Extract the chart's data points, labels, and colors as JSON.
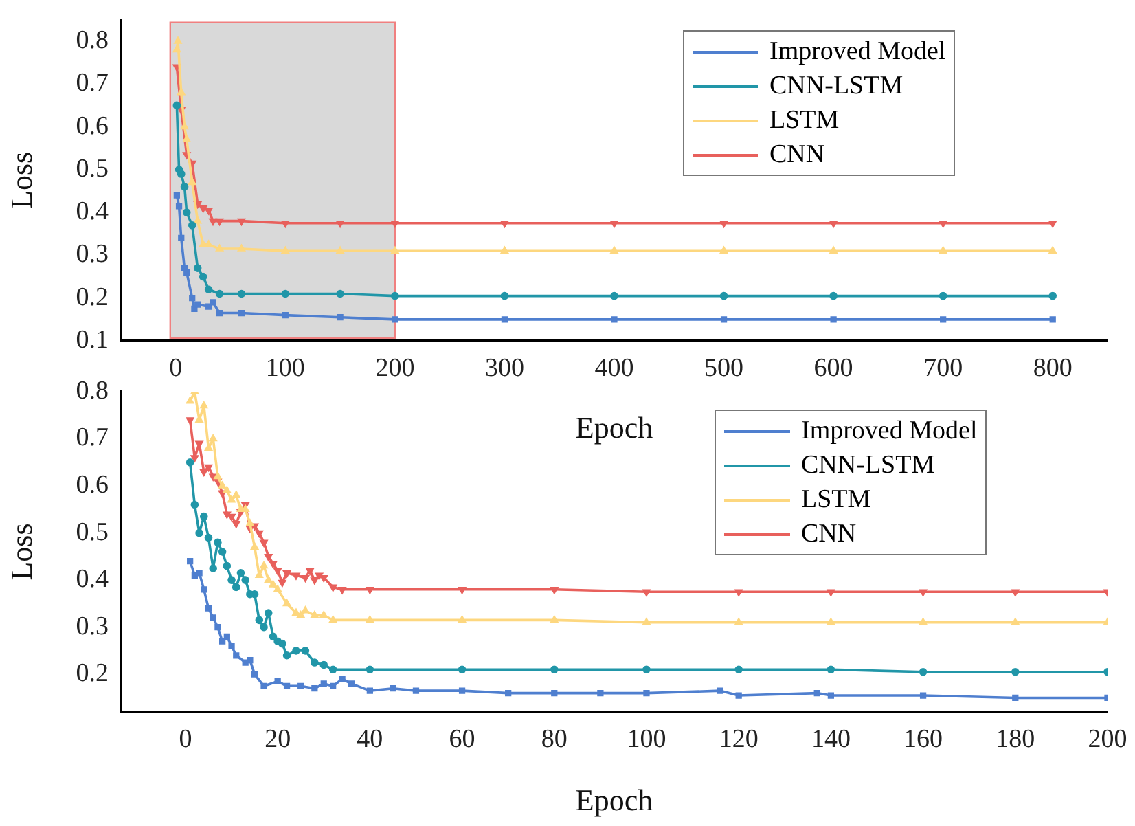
{
  "chart_data": [
    {
      "type": "line",
      "xlabel": "Epoch",
      "ylabel": "Loss",
      "xlim": [
        -50,
        850
      ],
      "xticks": [
        0,
        100,
        200,
        300,
        400,
        500,
        600,
        700,
        800
      ],
      "ylim": [
        0.1,
        0.85
      ],
      "yticks": [
        0.1,
        0.2,
        0.3,
        0.4,
        0.5,
        0.6,
        0.7,
        0.8
      ],
      "legend": "top right",
      "grid": false,
      "bands": [
        {
          "axis": "x",
          "from": -5,
          "to": 200,
          "color": "#d9d9d9"
        }
      ],
      "series": [
        {
          "name": "Improved Model",
          "color": "#4f7fcf",
          "marker": "square",
          "x": [
            1,
            3,
            5,
            8,
            10,
            15,
            17,
            20,
            30,
            34,
            40,
            60,
            100,
            150,
            200,
            300,
            400,
            500,
            600,
            700,
            800
          ],
          "values": [
            0.44,
            0.415,
            0.34,
            0.27,
            0.26,
            0.2,
            0.175,
            0.185,
            0.18,
            0.19,
            0.165,
            0.165,
            0.16,
            0.155,
            0.15,
            0.15,
            0.15,
            0.15,
            0.15,
            0.15,
            0.15
          ]
        },
        {
          "name": "CNN-LSTM",
          "color": "#2196a8",
          "marker": "circle",
          "x": [
            1,
            3,
            5,
            8,
            10,
            15,
            20,
            25,
            30,
            40,
            60,
            100,
            150,
            200,
            300,
            400,
            500,
            600,
            700,
            800
          ],
          "values": [
            0.65,
            0.5,
            0.49,
            0.46,
            0.4,
            0.37,
            0.27,
            0.25,
            0.22,
            0.21,
            0.21,
            0.21,
            0.21,
            0.205,
            0.205,
            0.205,
            0.205,
            0.205,
            0.205,
            0.205
          ]
        },
        {
          "name": "LSTM",
          "color": "#fdd77f",
          "marker": "triangle",
          "x": [
            1,
            2,
            5,
            8,
            10,
            15,
            20,
            25,
            30,
            40,
            60,
            100,
            150,
            200,
            300,
            400,
            500,
            600,
            700,
            800
          ],
          "values": [
            0.78,
            0.8,
            0.68,
            0.6,
            0.57,
            0.47,
            0.38,
            0.325,
            0.325,
            0.315,
            0.315,
            0.31,
            0.31,
            0.31,
            0.31,
            0.31,
            0.31,
            0.31,
            0.31,
            0.31
          ]
        },
        {
          "name": "CNN",
          "color": "#e8605c",
          "marker": "triangle-down",
          "x": [
            1,
            5,
            10,
            15,
            20,
            25,
            30,
            34,
            40,
            60,
            100,
            150,
            200,
            300,
            400,
            500,
            600,
            700,
            800
          ],
          "values": [
            0.74,
            0.64,
            0.535,
            0.515,
            0.42,
            0.41,
            0.405,
            0.38,
            0.38,
            0.38,
            0.375,
            0.375,
            0.375,
            0.375,
            0.375,
            0.375,
            0.375,
            0.375,
            0.375
          ]
        }
      ]
    },
    {
      "type": "line",
      "xlabel": "Epoch",
      "ylabel": "Loss",
      "xlim": [
        -14,
        200
      ],
      "xticks": [
        0,
        20,
        40,
        60,
        80,
        100,
        120,
        140,
        160,
        180,
        200
      ],
      "ylim": [
        0.12,
        0.8
      ],
      "yticks": [
        0.2,
        0.3,
        0.4,
        0.5,
        0.6,
        0.7,
        0.8
      ],
      "legend": "top right",
      "grid": false,
      "series": [
        {
          "name": "Improved Model",
          "color": "#4f7fcf",
          "marker": "square",
          "x": [
            1,
            2,
            3,
            4,
            5,
            6,
            7,
            8,
            9,
            10,
            11,
            13,
            14,
            15,
            17,
            20,
            22,
            25,
            28,
            30,
            32,
            34,
            36,
            40,
            45,
            50,
            60,
            70,
            80,
            90,
            100,
            116,
            120,
            137,
            140,
            160,
            180,
            200
          ],
          "values": [
            0.44,
            0.41,
            0.415,
            0.38,
            0.34,
            0.32,
            0.3,
            0.27,
            0.28,
            0.26,
            0.24,
            0.225,
            0.23,
            0.2,
            0.175,
            0.185,
            0.175,
            0.175,
            0.17,
            0.18,
            0.175,
            0.19,
            0.18,
            0.165,
            0.17,
            0.165,
            0.165,
            0.16,
            0.16,
            0.16,
            0.16,
            0.165,
            0.155,
            0.16,
            0.155,
            0.155,
            0.15,
            0.15
          ]
        },
        {
          "name": "CNN-LSTM",
          "color": "#2196a8",
          "marker": "circle",
          "x": [
            1,
            2,
            3,
            4,
            5,
            6,
            7,
            8,
            9,
            10,
            11,
            12,
            13,
            14,
            15,
            16,
            17,
            18,
            19,
            20,
            21,
            22,
            24,
            26,
            28,
            30,
            32,
            40,
            60,
            80,
            100,
            120,
            140,
            160,
            180,
            200
          ],
          "values": [
            0.65,
            0.56,
            0.5,
            0.535,
            0.49,
            0.425,
            0.48,
            0.46,
            0.43,
            0.4,
            0.385,
            0.415,
            0.4,
            0.37,
            0.37,
            0.315,
            0.3,
            0.33,
            0.28,
            0.27,
            0.265,
            0.24,
            0.25,
            0.25,
            0.225,
            0.22,
            0.21,
            0.21,
            0.21,
            0.21,
            0.21,
            0.21,
            0.21,
            0.205,
            0.205,
            0.205
          ]
        },
        {
          "name": "LSTM",
          "color": "#fdd77f",
          "marker": "triangle",
          "x": [
            1,
            2,
            3,
            4,
            5,
            6,
            7,
            8,
            9,
            10,
            11,
            12,
            13,
            14,
            15,
            16,
            17,
            18,
            19,
            20,
            22,
            24,
            25,
            26,
            28,
            30,
            32,
            40,
            60,
            80,
            100,
            120,
            140,
            160,
            180,
            200
          ],
          "values": [
            0.78,
            0.8,
            0.74,
            0.77,
            0.68,
            0.7,
            0.62,
            0.6,
            0.59,
            0.57,
            0.58,
            0.55,
            0.55,
            0.52,
            0.47,
            0.41,
            0.43,
            0.4,
            0.39,
            0.38,
            0.35,
            0.33,
            0.325,
            0.335,
            0.325,
            0.325,
            0.315,
            0.315,
            0.315,
            0.315,
            0.31,
            0.31,
            0.31,
            0.31,
            0.31,
            0.31
          ]
        },
        {
          "name": "CNN",
          "color": "#e8605c",
          "marker": "triangle-down",
          "x": [
            1,
            2,
            3,
            4,
            5,
            6,
            7,
            8,
            9,
            10,
            11,
            12,
            13,
            14,
            15,
            16,
            17,
            18,
            19,
            20,
            21,
            22,
            24,
            26,
            27,
            28,
            29,
            30,
            32,
            34,
            40,
            60,
            80,
            100,
            120,
            140,
            160,
            180,
            200
          ],
          "values": [
            0.74,
            0.66,
            0.69,
            0.63,
            0.64,
            0.62,
            0.61,
            0.585,
            0.54,
            0.535,
            0.52,
            0.545,
            0.56,
            0.51,
            0.515,
            0.5,
            0.48,
            0.45,
            0.435,
            0.42,
            0.395,
            0.415,
            0.41,
            0.405,
            0.42,
            0.4,
            0.41,
            0.405,
            0.385,
            0.38,
            0.38,
            0.38,
            0.38,
            0.375,
            0.375,
            0.375,
            0.375,
            0.375,
            0.375
          ]
        }
      ]
    }
  ]
}
